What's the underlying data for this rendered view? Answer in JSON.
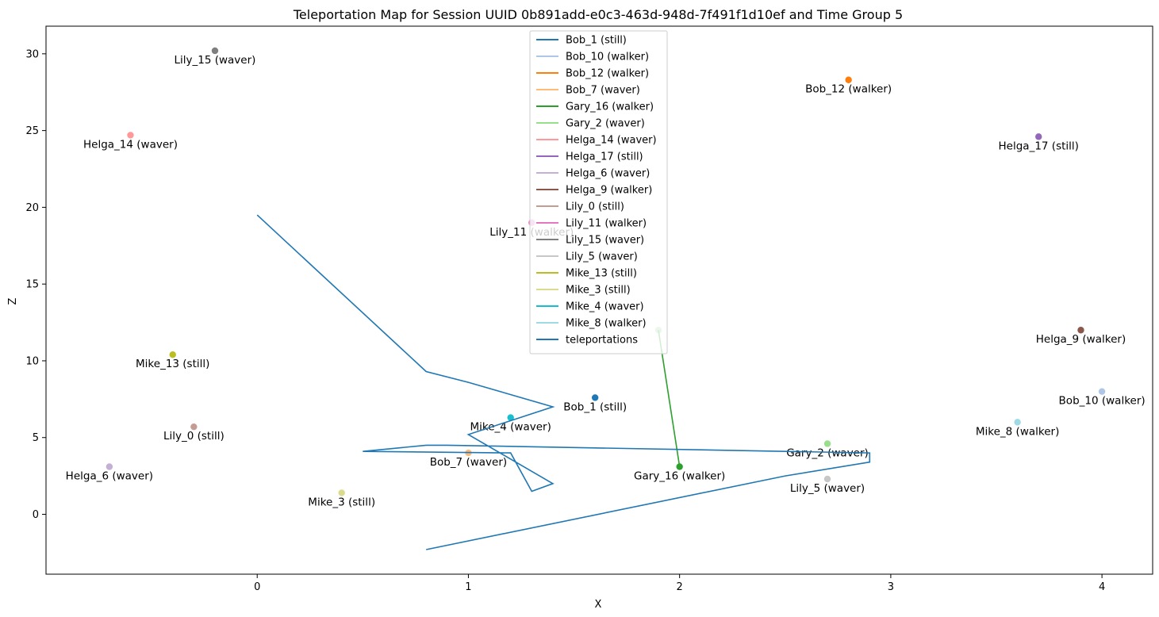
{
  "chart_data": {
    "type": "scatter",
    "title": "Teleportation Map for Session UUID 0b891add-e0c3-463d-948d-7f491f1d10ef and Time Group 5",
    "xlabel": "X",
    "ylabel": "Z",
    "xlim": [
      -1.0,
      4.24
    ],
    "ylim": [
      -3.9,
      31.8
    ],
    "xticks": [
      0,
      1,
      2,
      3,
      4
    ],
    "yticks": [
      0,
      5,
      10,
      15,
      20,
      25,
      30
    ],
    "grid": false,
    "legend_position": "top-center",
    "series": [
      {
        "name": "Bob_1 (still)",
        "color": "#1f77b4",
        "points": [
          [
            1.6,
            7.6
          ]
        ]
      },
      {
        "name": "Bob_10 (walker)",
        "color": "#aec7e8",
        "points": [
          [
            4.0,
            8.0
          ]
        ]
      },
      {
        "name": "Bob_12 (walker)",
        "color": "#ff7f0e",
        "points": [
          [
            2.8,
            28.3
          ]
        ]
      },
      {
        "name": "Bob_7 (waver)",
        "color": "#ffbb78",
        "points": [
          [
            1.0,
            4.0
          ]
        ]
      },
      {
        "name": "Gary_16 (walker)",
        "color": "#2ca02c",
        "points": [
          [
            1.9,
            12.0
          ],
          [
            2.0,
            3.1
          ]
        ]
      },
      {
        "name": "Gary_2 (waver)",
        "color": "#98df8a",
        "points": [
          [
            2.7,
            4.6
          ]
        ]
      },
      {
        "name": "Helga_14 (waver)",
        "color": "#ff9896",
        "points": [
          [
            -0.6,
            24.7
          ]
        ]
      },
      {
        "name": "Helga_17 (still)",
        "color": "#9467bd",
        "points": [
          [
            3.7,
            24.6
          ]
        ]
      },
      {
        "name": "Helga_6 (waver)",
        "color": "#c5b0d5",
        "points": [
          [
            -0.7,
            3.1
          ]
        ]
      },
      {
        "name": "Helga_9 (walker)",
        "color": "#8c564b",
        "points": [
          [
            3.9,
            12.0
          ]
        ]
      },
      {
        "name": "Lily_0 (still)",
        "color": "#c49c94",
        "points": [
          [
            -0.3,
            5.7
          ]
        ]
      },
      {
        "name": "Lily_11 (walker)",
        "color": "#e377c2",
        "points": [
          [
            1.3,
            19.0
          ]
        ]
      },
      {
        "name": "Lily_15 (waver)",
        "color": "#7f7f7f",
        "points": [
          [
            -0.2,
            30.2
          ]
        ]
      },
      {
        "name": "Lily_5 (waver)",
        "color": "#c7c7c7",
        "points": [
          [
            2.7,
            2.3
          ]
        ]
      },
      {
        "name": "Mike_13 (still)",
        "color": "#bcbd22",
        "points": [
          [
            -0.4,
            10.4
          ]
        ]
      },
      {
        "name": "Mike_3 (still)",
        "color": "#dbdb8d",
        "points": [
          [
            0.4,
            1.4
          ]
        ]
      },
      {
        "name": "Mike_4 (waver)",
        "color": "#17becf",
        "points": [
          [
            1.2,
            6.3
          ]
        ]
      },
      {
        "name": "Mike_8 (walker)",
        "color": "#9edae5",
        "points": [
          [
            3.6,
            6.0
          ]
        ]
      },
      {
        "name": "teleportations",
        "color": "#1f77b4",
        "points": [
          [
            0.0,
            19.5
          ],
          [
            0.8,
            9.3
          ],
          [
            1.0,
            8.6
          ],
          [
            1.4,
            7.0
          ],
          [
            1.0,
            5.2
          ],
          [
            1.4,
            2.0
          ],
          [
            1.3,
            1.5
          ],
          [
            1.2,
            4.0
          ],
          [
            0.5,
            4.1
          ],
          [
            0.8,
            4.5
          ],
          [
            0.9,
            4.5
          ],
          [
            2.9,
            4.0
          ],
          [
            2.9,
            3.4
          ],
          [
            2.5,
            2.5
          ],
          [
            0.8,
            -2.3
          ]
        ]
      }
    ]
  }
}
